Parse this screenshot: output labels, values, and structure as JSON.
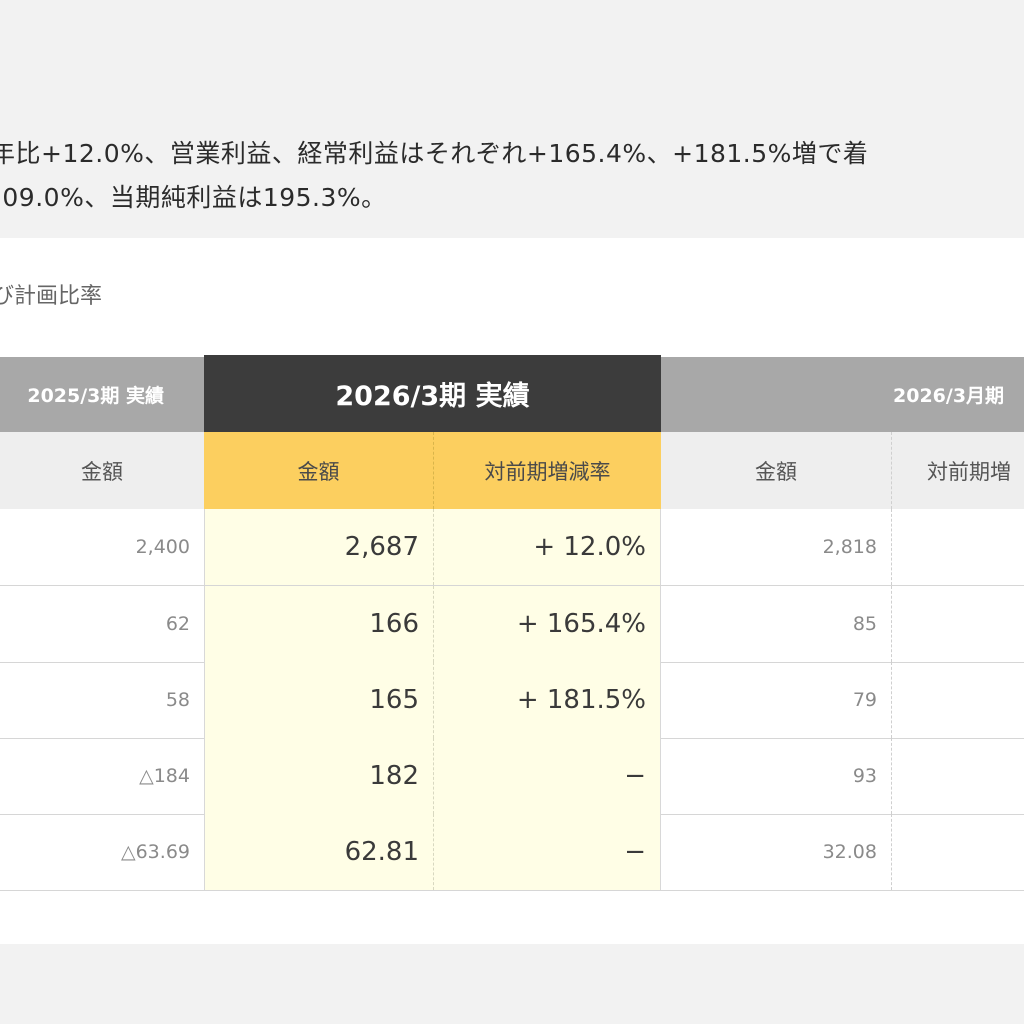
{
  "intro": {
    "line1": "年比+12.0%、営業利益、経常利益はそれぞれ+165.4%、+181.5%増で着",
    "line2": "109.0%、当期純利益は195.3%。"
  },
  "caption": "び計画比率",
  "table": {
    "headers": {
      "prev": "2025/3期 実績",
      "current": "2026/3期 実績",
      "plan": "2026/3月期"
    },
    "subheaders": {
      "prev_amount": "金額",
      "cur_amount": "金額",
      "cur_rate": "対前期増減率",
      "plan_amount": "金額",
      "plan_rate": "対前期増"
    },
    "rows": [
      {
        "prev": "2,400",
        "cur": "2,687",
        "rate": "+ 12.0%",
        "plan": "2,818"
      },
      {
        "prev": "62",
        "cur": "166",
        "rate": "+ 165.4%",
        "plan": "85"
      },
      {
        "prev": "58",
        "cur": "165",
        "rate": "+ 181.5%",
        "plan": "79"
      },
      {
        "prev": "△184",
        "cur": "182",
        "rate": "−",
        "plan": "93"
      },
      {
        "prev": "△63.69",
        "cur": "62.81",
        "rate": "−",
        "plan": "32.08"
      }
    ]
  },
  "colors": {
    "header_dark": "#3c3c3c",
    "header_gray": "#a8a8a8",
    "subheader_gold": "#fccf5f",
    "highlight_column": "#fffee6"
  }
}
